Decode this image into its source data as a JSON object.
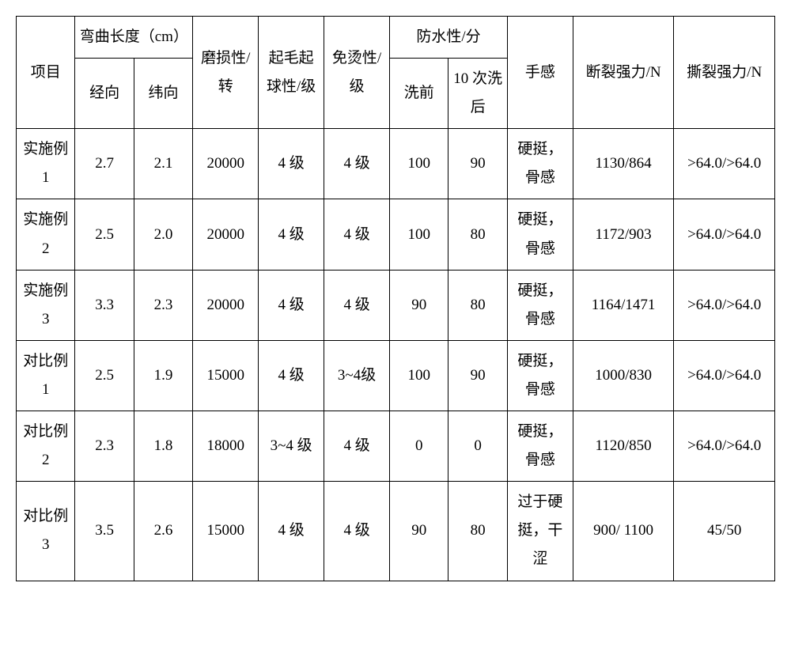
{
  "headers": {
    "item": "项目",
    "bend_length": "弯曲长度（cm）",
    "bend_jing": "经向",
    "bend_wei": "纬向",
    "abrasion": "磨损性/转",
    "pilling": "起毛起球性/级",
    "non_iron": "免烫性/级",
    "waterproof": "防水性/分",
    "wp_before": "洗前",
    "wp_after": "10 次洗后",
    "hand_feel": "手感",
    "break_strength": "断裂强力/N",
    "tear_strength": "撕裂强力/N"
  },
  "rows": [
    {
      "name": "实施例 1",
      "jing": "2.7",
      "wei": "2.1",
      "abrasion": "20000",
      "pilling": "4 级",
      "non_iron": "4 级",
      "wp_before": "100",
      "wp_after": "90",
      "hand_feel": "硬挺，骨感",
      "break": "1130/864",
      "tear": ">64.0/>64.0"
    },
    {
      "name": "实施例 2",
      "jing": "2.5",
      "wei": "2.0",
      "abrasion": "20000",
      "pilling": "4 级",
      "non_iron": "4 级",
      "wp_before": "100",
      "wp_after": "80",
      "hand_feel": "硬挺，骨感",
      "break": "1172/903",
      "tear": ">64.0/>64.0"
    },
    {
      "name": "实施例 3",
      "jing": "3.3",
      "wei": "2.3",
      "abrasion": "20000",
      "pilling": "4 级",
      "non_iron": "4 级",
      "wp_before": "90",
      "wp_after": "80",
      "hand_feel": "硬挺，骨感",
      "break": "1164/1471",
      "tear": ">64.0/>64.0"
    },
    {
      "name": "对比例 1",
      "jing": "2.5",
      "wei": "1.9",
      "abrasion": "15000",
      "pilling": "4 级",
      "non_iron": "3~4级",
      "wp_before": "100",
      "wp_after": "90",
      "hand_feel": "硬挺，骨感",
      "break": "1000/830",
      "tear": ">64.0/>64.0"
    },
    {
      "name": "对比例 2",
      "jing": "2.3",
      "wei": "1.8",
      "abrasion": "18000",
      "pilling": "3~4 级",
      "non_iron": "4 级",
      "wp_before": "0",
      "wp_after": "0",
      "hand_feel": "硬挺，骨感",
      "break": "1120/850",
      "tear": ">64.0/>64.0"
    },
    {
      "name": "对比例 3",
      "jing": "3.5",
      "wei": "2.6",
      "abrasion": "15000",
      "pilling": "4 级",
      "non_iron": "4 级",
      "wp_before": "90",
      "wp_after": "80",
      "hand_feel": "过于硬挺，干涩",
      "break": "900/ 1100",
      "tear": "45/50"
    }
  ]
}
